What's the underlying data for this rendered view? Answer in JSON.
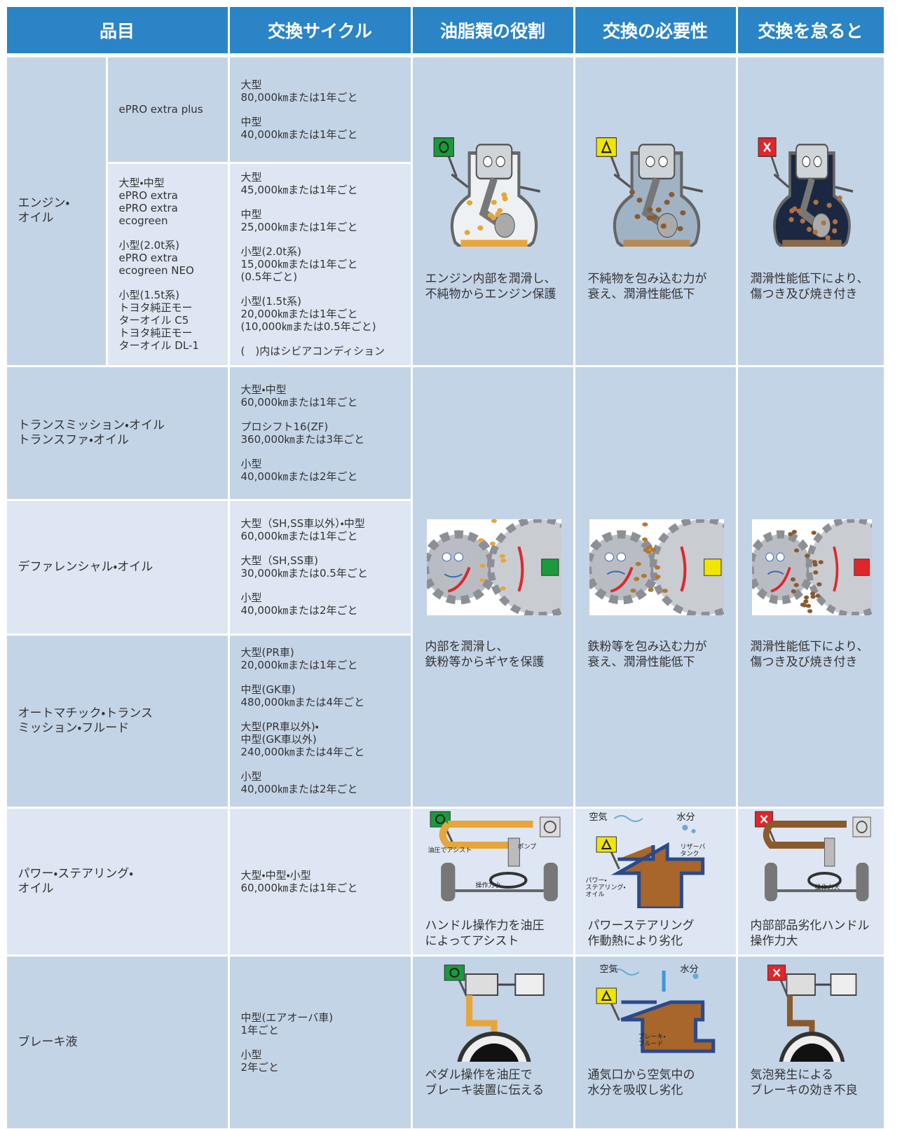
{
  "header": [
    "品目",
    "交換サイクル",
    "油脂類の役割",
    "交換の必要性",
    "交換を怠ると"
  ],
  "rows": [
    {
      "item": "エンジン・\nオイル",
      "grades": [
        {
          "name": [
            "ePRO extra plus"
          ],
          "cycle": [
            "大型\n80,000㎞または1年ごと",
            "中型\n40,000㎞または1年ごと"
          ]
        },
        {
          "name": [
            "大型・中型\nePRO extra\nePRO extra\necogreen",
            "小型(2.0t系)\nePRO extra\necogreen NEO",
            "小型(1.5t系)\nトヨタ純正モー\nターオイル C5\nトヨタ純正モー\nターオイル DL-1"
          ],
          "cycle": [
            "大型\n45,000㎞または1年ごと",
            "中型\n25,000㎞または1年ごと",
            "小型(2.0t系)\n15,000㎞または1年ごと\n(0.5年ごと)",
            "小型(1.5t系)\n20,000㎞または1年ごと\n(10,000㎞または0.5年ごと)",
            "(　)内はシビアコンディション"
          ]
        }
      ],
      "role": "エンジン内部を潤滑し、\n不純物からエンジン保護",
      "need": "不純物を包み込む力が\n衰え、潤滑性能低下",
      "neglect": "潤滑性能低下により、\n傷つき及び焼き付き"
    },
    {
      "item": "トランスミッション・オイル\nトランスファ・オイル",
      "cycle": [
        "大型・中型\n60,000㎞または1年ごと",
        "プロシフト16(ZF)\n360,000㎞または3年ごと",
        "小型\n40,000㎞または2年ごと"
      ]
    },
    {
      "item": "デファレンシャル・オイル",
      "cycle": [
        "大型（SH,SS車以外）・中型\n60,000㎞または1年ごと",
        "大型（SH,SS車)\n30,000㎞または0.5年ごと",
        "小型\n40,000㎞または2年ごと"
      ]
    },
    {
      "item": "オートマチック・トランス\nミッション・フルード",
      "cycle": [
        "大型(PR車)\n20,000㎞または1年ごと",
        "中型(GK車)\n480,000㎞または4年ごと",
        "大型(PR車以外)・\n中型(GK車以外)\n240,000㎞または4年ごと",
        "小型\n40,000㎞または2年ごと"
      ]
    },
    {
      "item": "パワー・ステアリング・\nオイル",
      "cycle": [
        "大型・中型・小型\n60,000㎞または1年ごと"
      ],
      "role": "ハンドル操作力を油圧\nによってアシスト",
      "need": "パワーステアリング\n作動熱により劣化",
      "neglect": "内部部品劣化ハンドル\n操作力大",
      "labels": {
        "role": [
          "油圧でアシスト",
          "ポンプ",
          "操作力小"
        ],
        "need": [
          "空気",
          "水分",
          "リザーバ\nタンク",
          "パワー・\nステアリング・\nオイル"
        ],
        "neglect": [
          "操作力大"
        ]
      }
    },
    {
      "item": "ブレーキ液",
      "cycle": [
        "中型(エアオーバ車)\n1年ごと",
        "小型\n2年ごと"
      ],
      "role": "ペダル操作を油圧で\nブレーキ装置に伝える",
      "need": "通気口から空気中の\n水分を吸収し劣化",
      "neglect": "気泡発生による\nブレーキの効き不良",
      "labels": {
        "need": [
          "空気",
          "水分",
          "ブレーキ・\nフルード"
        ]
      }
    }
  ],
  "gear_group": {
    "role": "内部を潤滑し、\n鉄粉等からギヤを保護",
    "need": "鉄粉等を包み込む力が\n衰え、潤滑性能低下",
    "neglect": "潤滑性能低下により、\n傷つき及び焼き付き"
  }
}
